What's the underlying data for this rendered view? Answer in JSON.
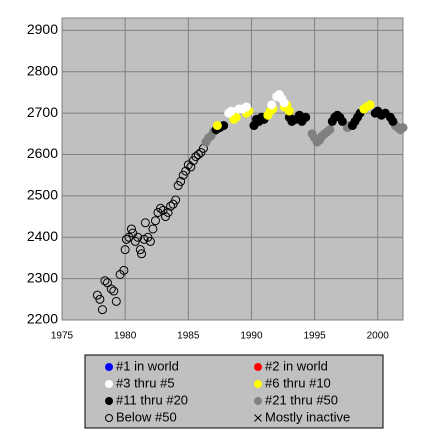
{
  "chart_data": {
    "type": "scatter",
    "xlim": [
      1975,
      2002
    ],
    "xticks": [
      1975,
      1980,
      1985,
      1990,
      1995,
      2000
    ],
    "ylim": [
      2200,
      2930
    ],
    "yticks": [
      2200,
      2300,
      2400,
      2500,
      2600,
      2700,
      2800,
      2900
    ],
    "grid": true,
    "legend": "bottom",
    "series": [
      {
        "name": "#1 in world",
        "color": "#0000ff",
        "marker": "filled",
        "x": [],
        "values": []
      },
      {
        "name": "#2 in world",
        "color": "#ff0000",
        "marker": "filled",
        "x": [],
        "values": []
      },
      {
        "name": "#3 thru #5",
        "color": "#ffffff",
        "marker": "filled",
        "x": [
          1988.2,
          1988.4,
          1989.0,
          1989.3,
          1989.6,
          1991.6,
          1992.0,
          1992.2,
          1992.4,
          1992.6
        ],
        "values": [
          2700,
          2705,
          2710,
          2710,
          2715,
          2720,
          2740,
          2745,
          2735,
          2725
        ]
      },
      {
        "name": "#6 thru #10",
        "color": "#ffff00",
        "marker": "filled",
        "x": [
          1987.3,
          1988.6,
          1988.8,
          1989.6,
          1989.8,
          1991.3,
          1991.5,
          1991.7,
          1992.6,
          1992.8,
          1993.0,
          1998.9,
          1999.1,
          1999.4
        ],
        "values": [
          2670,
          2685,
          2690,
          2700,
          2705,
          2695,
          2705,
          2710,
          2715,
          2720,
          2705,
          2710,
          2715,
          2720
        ]
      },
      {
        "name": "#11 thru #20",
        "color": "#000000",
        "marker": "filled",
        "x": [
          1987.2,
          1987.5,
          1987.8,
          1990.2,
          1990.4,
          1990.6,
          1990.8,
          1991.0,
          1993.0,
          1993.2,
          1993.5,
          1993.8,
          1994.0,
          1994.3,
          1996.4,
          1996.6,
          1996.8,
          1997.0,
          1997.2,
          1998.0,
          1998.2,
          1998.4,
          1998.6,
          1999.8,
          2000.0,
          2000.3,
          2000.6,
          2001.0,
          2001.2
        ],
        "values": [
          2660,
          2665,
          2670,
          2670,
          2685,
          2680,
          2690,
          2685,
          2690,
          2680,
          2685,
          2695,
          2680,
          2690,
          2680,
          2690,
          2695,
          2690,
          2680,
          2670,
          2680,
          2690,
          2700,
          2700,
          2705,
          2695,
          2700,
          2690,
          2680
        ]
      },
      {
        "name": "#21 thru #50",
        "color": "#808080",
        "marker": "filled",
        "x": [
          1986.4,
          1986.6,
          1986.8,
          1987.0,
          1994.8,
          1995.0,
          1995.2,
          1995.4,
          1995.6,
          1995.8,
          1996.0,
          1996.2,
          1997.6,
          1997.8,
          2001.4,
          2001.6,
          2001.8,
          2002.0
        ],
        "values": [
          2630,
          2640,
          2645,
          2655,
          2650,
          2640,
          2630,
          2635,
          2645,
          2650,
          2655,
          2660,
          2665,
          2670,
          2670,
          2665,
          2660,
          2665
        ]
      },
      {
        "name": "Below #50",
        "color": "#000000",
        "marker": "open",
        "x": [
          1977.8,
          1978.0,
          1978.2,
          1978.4,
          1978.6,
          1978.9,
          1979.1,
          1979.3,
          1979.6,
          1979.9,
          1980.0,
          1980.1,
          1980.3,
          1980.5,
          1980.6,
          1980.8,
          1981.0,
          1981.2,
          1981.3,
          1981.5,
          1981.6,
          1981.8,
          1982.0,
          1982.2,
          1982.4,
          1982.6,
          1982.8,
          1983.0,
          1983.2,
          1983.4,
          1983.6,
          1983.8,
          1984.0,
          1984.2,
          1984.4,
          1984.6,
          1984.8,
          1985.0,
          1985.2,
          1985.4,
          1985.6,
          1985.8,
          1986.0,
          1986.2
        ],
        "values": [
          2260,
          2250,
          2225,
          2295,
          2290,
          2275,
          2270,
          2245,
          2310,
          2320,
          2370,
          2395,
          2400,
          2420,
          2410,
          2390,
          2400,
          2370,
          2360,
          2395,
          2435,
          2400,
          2390,
          2420,
          2440,
          2460,
          2470,
          2465,
          2450,
          2460,
          2475,
          2480,
          2490,
          2525,
          2535,
          2550,
          2560,
          2575,
          2570,
          2585,
          2595,
          2600,
          2605,
          2615
        ]
      },
      {
        "name": "Mostly inactive",
        "color": "#000000",
        "marker": "x",
        "x": [],
        "values": []
      }
    ]
  }
}
